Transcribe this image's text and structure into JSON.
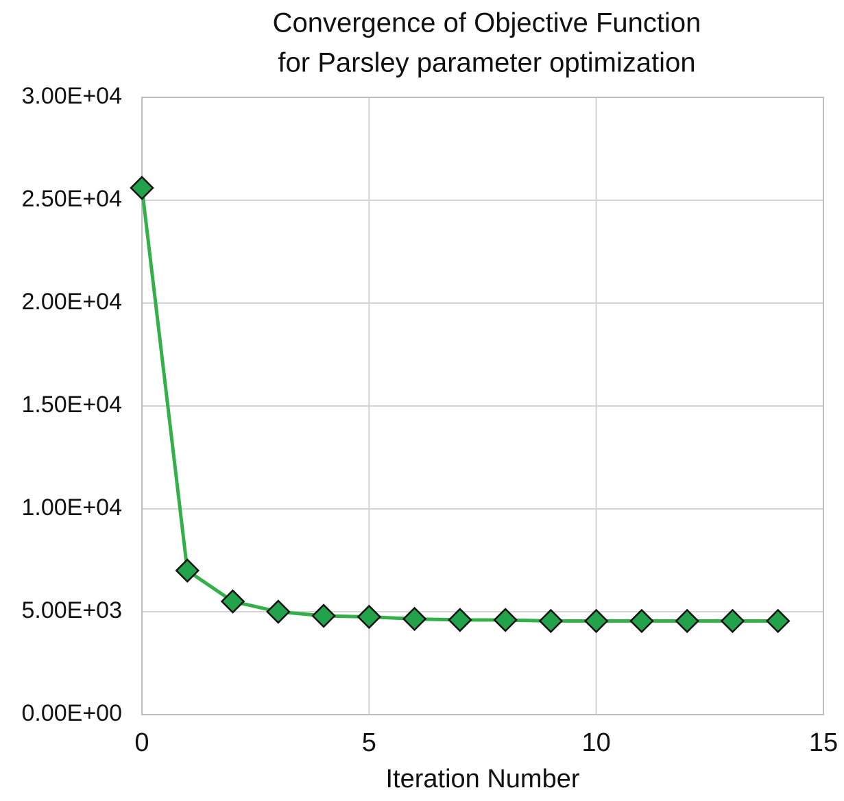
{
  "chart_data": {
    "type": "line",
    "title": [
      "Convergence of Objective Function",
      "for Parsley parameter optimization"
    ],
    "x_label": "Iteration Number",
    "x": [
      0,
      1,
      2,
      3,
      4,
      5,
      6,
      7,
      8,
      9,
      10,
      11,
      12,
      13,
      14
    ],
    "values": [
      25600,
      7000,
      5500,
      5000,
      4800,
      4750,
      4650,
      4600,
      4600,
      4550,
      4550,
      4550,
      4550,
      4550,
      4550
    ],
    "color": "#34b04a",
    "marker_color": "#22a24a",
    "xlim": [
      0,
      15
    ],
    "xticks": [
      0,
      5,
      10,
      15
    ],
    "ylim": [
      0,
      30000
    ],
    "yticks": [
      {
        "value": 0,
        "label": "0.00E+00"
      },
      {
        "value": 5000,
        "label": "5.00E+03"
      },
      {
        "value": 10000,
        "label": "1.00E+04"
      },
      {
        "value": 15000,
        "label": "1.50E+04"
      },
      {
        "value": 20000,
        "label": "2.00E+04"
      },
      {
        "value": 25000,
        "label": "2.50E+04"
      },
      {
        "value": 30000,
        "label": "3.00E+04"
      }
    ],
    "grid": true
  }
}
